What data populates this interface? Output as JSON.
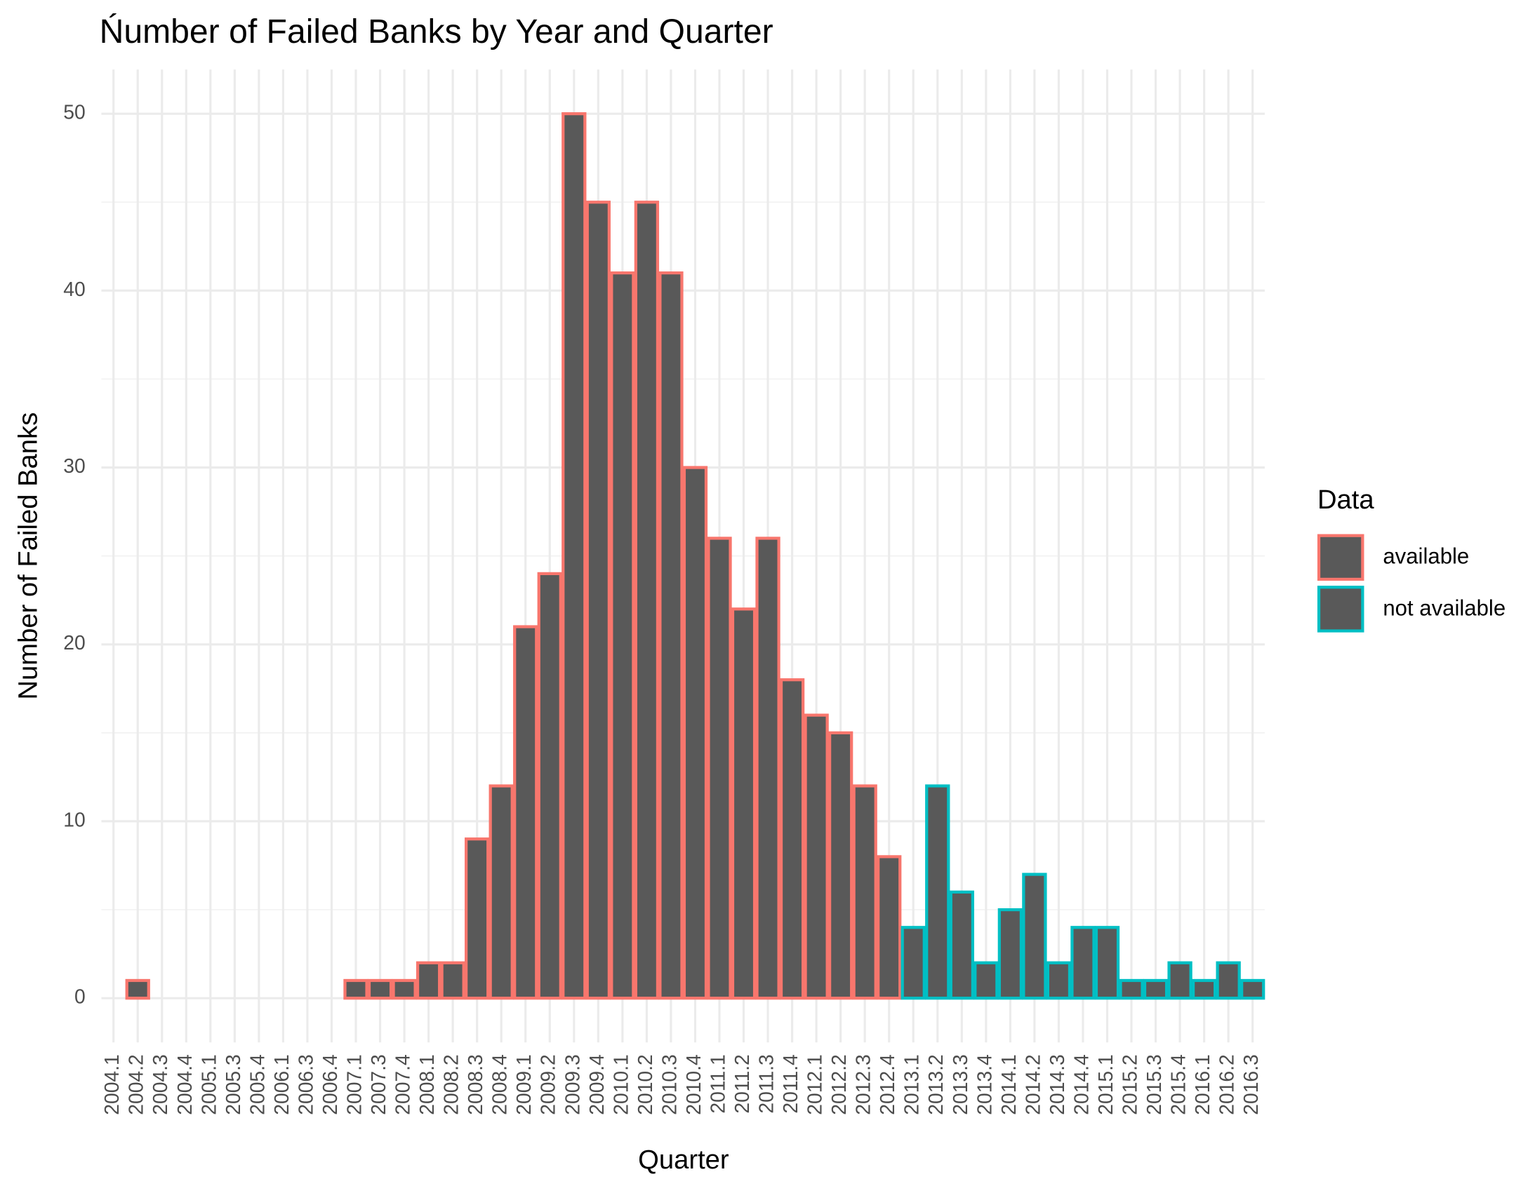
{
  "chart_data": {
    "type": "bar",
    "title": "Ńumber of Failed Banks by Year and Quarter",
    "x_label": "Quarter",
    "y_label": "Number of Failed Banks",
    "legend_title": "Data",
    "legend": "right",
    "grid": true,
    "fill": "#595959",
    "categories": [
      "2004.1",
      "2004.2",
      "2004.3",
      "2004.4",
      "2005.1",
      "2005.3",
      "2005.4",
      "2006.1",
      "2006.3",
      "2006.4",
      "2007.1",
      "2007.3",
      "2007.4",
      "2008.1",
      "2008.2",
      "2008.3",
      "2008.4",
      "2009.1",
      "2009.2",
      "2009.3",
      "2009.4",
      "2010.1",
      "2010.2",
      "2010.3",
      "2010.4",
      "2011.1",
      "2011.2",
      "2011.3",
      "2011.4",
      "2012.1",
      "2012.2",
      "2012.3",
      "2012.4",
      "2013.1",
      "2013.2",
      "2013.3",
      "2013.4",
      "2014.1",
      "2014.2",
      "2014.3",
      "2014.4",
      "2015.1",
      "2015.2",
      "2015.3",
      "2015.4",
      "2016.1",
      "2016.2",
      "2016.3"
    ],
    "series": [
      {
        "name": "available",
        "color": "#F8766D",
        "values": [
          0,
          1,
          0,
          0,
          0,
          0,
          0,
          0,
          0,
          0,
          1,
          1,
          1,
          2,
          2,
          9,
          12,
          21,
          24,
          50,
          45,
          41,
          45,
          41,
          30,
          26,
          22,
          26,
          18,
          16,
          15,
          12,
          8,
          null,
          null,
          null,
          null,
          null,
          null,
          null,
          null,
          null,
          null,
          null,
          null,
          null,
          null,
          null
        ]
      },
      {
        "name": "not available",
        "color": "#00BFC4",
        "values": [
          null,
          null,
          null,
          null,
          null,
          null,
          null,
          null,
          null,
          null,
          null,
          null,
          null,
          null,
          null,
          null,
          null,
          null,
          null,
          null,
          null,
          null,
          null,
          null,
          null,
          null,
          null,
          null,
          null,
          null,
          null,
          null,
          null,
          4,
          12,
          6,
          2,
          5,
          7,
          2,
          4,
          4,
          1,
          1,
          2,
          1,
          2,
          1
        ]
      }
    ],
    "ylim": [
      -2.5,
      52.5
    ],
    "yticks": [
      0,
      10,
      20,
      30,
      40,
      50
    ],
    "yminor": [
      5,
      15,
      25,
      35,
      45
    ]
  }
}
